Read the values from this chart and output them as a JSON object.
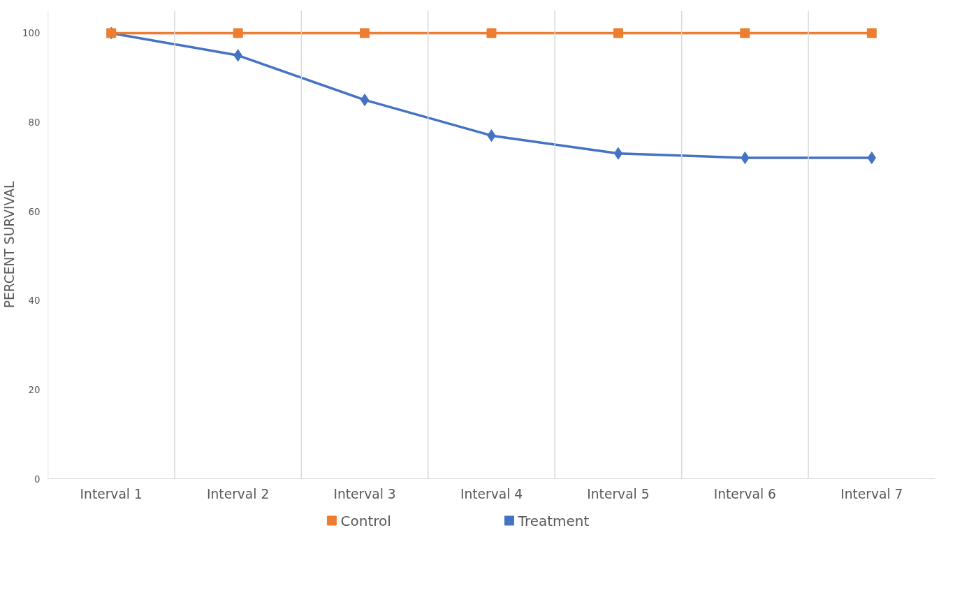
{
  "chart_data": {
    "type": "line",
    "ylabel": "PERCENT SURVIVAL",
    "categories": [
      "Interval 1",
      "Interval 2",
      "Interval 3",
      "Interval 4",
      "Interval 5",
      "Interval 6",
      "Interval 7"
    ],
    "series": [
      {
        "name": "Control",
        "color": "#ed7d31",
        "marker": "square",
        "values": [
          100,
          100,
          100,
          100,
          100,
          100,
          100
        ]
      },
      {
        "name": "Treatment",
        "color": "#4472c4",
        "marker": "diamond",
        "values": [
          100,
          95,
          85,
          77,
          73,
          72,
          72
        ]
      }
    ],
    "ylim": [
      0,
      105
    ],
    "yticks": [
      0,
      20,
      40,
      60,
      80,
      100
    ],
    "grid": "x",
    "legend": "bottom",
    "line_style": "solid"
  }
}
